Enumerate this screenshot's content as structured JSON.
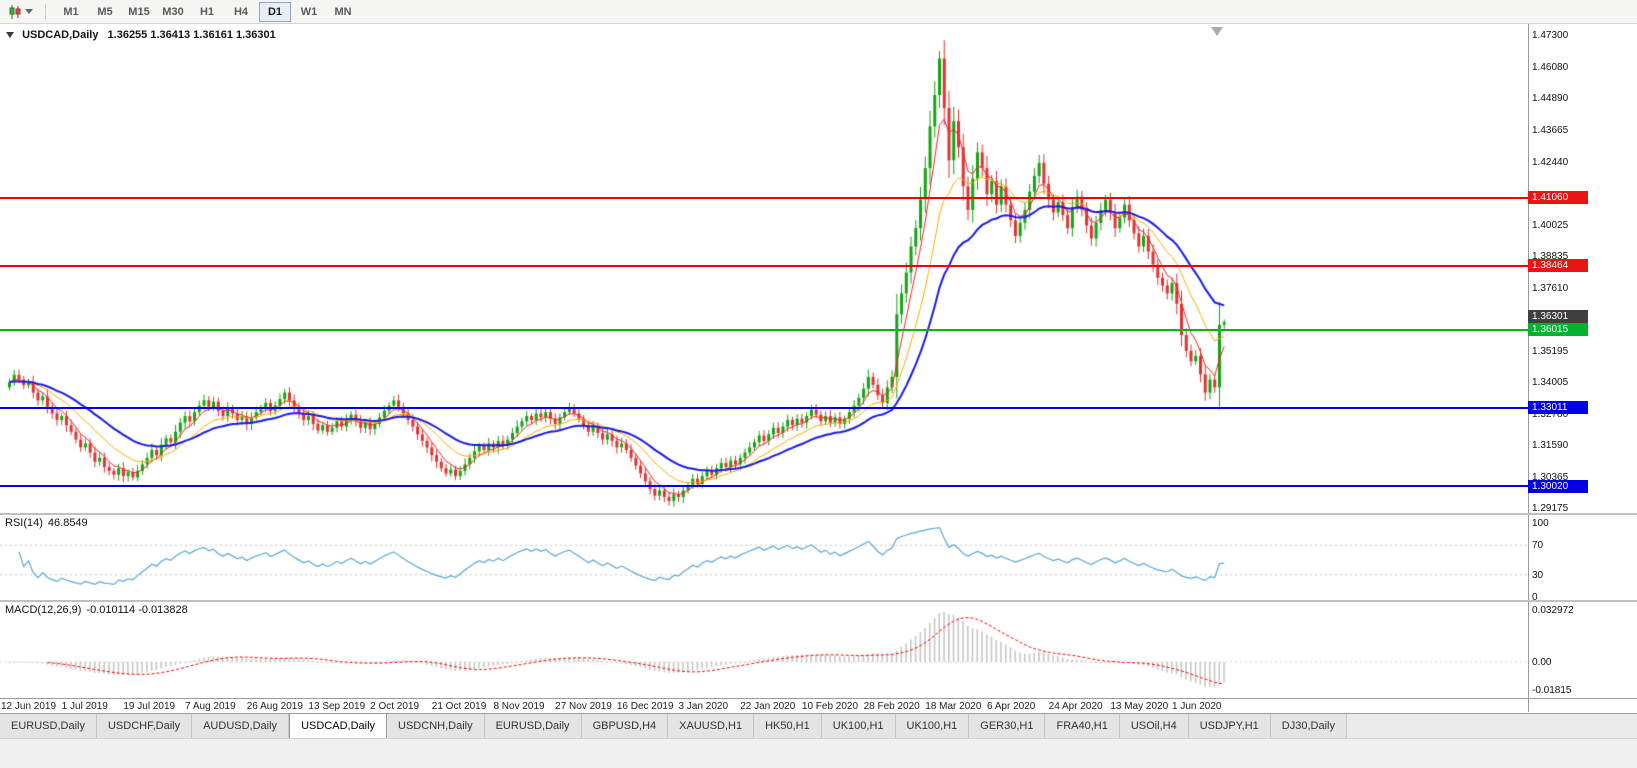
{
  "toolbar": {
    "timeframes": [
      "M1",
      "M5",
      "M15",
      "M30",
      "H1",
      "H4",
      "D1",
      "W1",
      "MN"
    ],
    "active_timeframe": "D1"
  },
  "header": {
    "symbol_period": "USDCAD,Daily",
    "ohlc": "1.36255 1.36413 1.36161 1.36301"
  },
  "price_scale": {
    "labels": [
      "1.47300",
      "1.46080",
      "1.44890",
      "1.43665",
      "1.42440",
      "1.40025",
      "1.38835",
      "1.37610",
      "1.35195",
      "1.34005",
      "1.32780",
      "1.31590",
      "1.30365",
      "1.29175"
    ]
  },
  "levels": [
    {
      "text": "1.41060",
      "value": 1.4106,
      "line_color": "#f00000",
      "tag_color": "#e81515"
    },
    {
      "text": "1.38464",
      "value": 1.38464,
      "line_color": "#f00000",
      "tag_color": "#e81515"
    },
    {
      "text": "1.36015",
      "value": 1.36015,
      "line_color": "#00bb00",
      "tag_color": "#00b22d"
    },
    {
      "text": "1.33011",
      "value": 1.33011,
      "line_color": "#0000f0",
      "tag_color": "#0000e0"
    },
    {
      "text": "1.30020",
      "value": 1.3002,
      "line_color": "#0000f0",
      "tag_color": "#0000e0"
    }
  ],
  "current_price": {
    "text": "1.36301",
    "value": 1.36301,
    "tag_color": "#3f3f3f"
  },
  "rsi": {
    "label": "RSI(14)",
    "value": "46.8549",
    "scale": [
      "100",
      "70",
      "30",
      "0"
    ],
    "scale_values": [
      100,
      70,
      30,
      0
    ]
  },
  "macd": {
    "label": "MACD(12,26,9)",
    "values": "-0.010114 -0.013828",
    "scale": [
      {
        "text": "0.032972",
        "value": 0.032972
      },
      {
        "text": "0.00",
        "value": 0
      },
      {
        "text": "-0.01815",
        "value": -0.01815
      }
    ]
  },
  "time_axis": [
    {
      "i": 0,
      "label": "12 Jun 2019"
    },
    {
      "i": 13,
      "label": "1 Jul 2019"
    },
    {
      "i": 26,
      "label": "19 Jul 2019"
    },
    {
      "i": 39,
      "label": "7 Aug 2019"
    },
    {
      "i": 52,
      "label": "26 Aug 2019"
    },
    {
      "i": 65,
      "label": "13 Sep 2019"
    },
    {
      "i": 78,
      "label": "2 Oct 2019"
    },
    {
      "i": 91,
      "label": "21 Oct 2019"
    },
    {
      "i": 104,
      "label": "8 Nov 2019"
    },
    {
      "i": 117,
      "label": "27 Nov 2019"
    },
    {
      "i": 130,
      "label": "16 Dec 2019"
    },
    {
      "i": 143,
      "label": "3 Jan 2020"
    },
    {
      "i": 156,
      "label": "22 Jan 2020"
    },
    {
      "i": 169,
      "label": "10 Feb 2020"
    },
    {
      "i": 182,
      "label": "28 Feb 2020"
    },
    {
      "i": 195,
      "label": "18 Mar 2020"
    },
    {
      "i": 208,
      "label": "6 Apr 2020"
    },
    {
      "i": 221,
      "label": "24 Apr 2020"
    },
    {
      "i": 234,
      "label": "13 May 2020"
    },
    {
      "i": 247,
      "label": "1 Jun 2020"
    }
  ],
  "tabs": {
    "active_index": 3,
    "items": [
      "EURUSD,Daily",
      "USDCHF,Daily",
      "AUDUSD,Daily",
      "USDCAD,Daily",
      "USDCNH,Daily",
      "EURUSD,Daily",
      "GBPUSD,H4",
      "XAUUSD,H1",
      "HK50,H1",
      "UK100,H1",
      "UK100,H1",
      "GER30,H1",
      "FRA40,H1",
      "USOil,H4",
      "USDJPY,H1",
      "DJ30,Daily"
    ]
  },
  "colors": {
    "bull": "#12a512",
    "bear": "#e03333",
    "ma_fast": "#ff2020",
    "ma_mid": "#ffaa00",
    "ma_slow": "#1a1ae6",
    "rsi_line": "#5aa7d4",
    "rsi_levels": "#c8c8c8",
    "macd_hist": "#c6c6c6",
    "macd_signal": "#ff0000"
  },
  "chart_data": {
    "type": "candlestick",
    "symbol": "USDCAD",
    "timeframe": "Daily",
    "last_bar": {
      "open": 1.36255,
      "high": 1.36413,
      "low": 1.36161,
      "close": 1.36301
    },
    "ylim": [
      1.29175,
      1.473
    ],
    "horizontal_levels": [
      1.4106,
      1.38464,
      1.36015,
      1.33011,
      1.3002
    ],
    "moving_averages": [
      {
        "period": 5,
        "color": "#ff2020",
        "width": 1
      },
      {
        "period": 13,
        "color": "#ffaa00",
        "width": 1
      },
      {
        "period": 26,
        "color": "#1a1ae6",
        "width": 2
      }
    ],
    "indicators": [
      {
        "name": "RSI",
        "period": 14,
        "current": 46.8549,
        "levels": [
          30,
          70
        ]
      },
      {
        "name": "MACD",
        "fast": 12,
        "slow": 26,
        "signal": 9,
        "current_main": -0.010114,
        "current_signal": -0.013828,
        "axis_max": 0.032972,
        "axis_min": -0.01815
      }
    ],
    "closes": [
      1.34,
      1.3428,
      1.341,
      1.3388,
      1.3398,
      1.336,
      1.333,
      1.3345,
      1.3305,
      1.328,
      1.3255,
      1.327,
      1.3235,
      1.321,
      1.318,
      1.315,
      1.3165,
      1.313,
      1.3095,
      1.311,
      1.3075,
      1.306,
      1.3045,
      1.307,
      1.304,
      1.3055,
      1.3035,
      1.306,
      1.3085,
      1.311,
      1.314,
      1.312,
      1.316,
      1.3185,
      1.317,
      1.321,
      1.3245,
      1.327,
      1.325,
      1.3285,
      1.331,
      1.333,
      1.3305,
      1.3325,
      1.329,
      1.327,
      1.33,
      1.328,
      1.3255,
      1.327,
      1.324,
      1.3265,
      1.3285,
      1.33,
      1.332,
      1.329,
      1.331,
      1.3335,
      1.336,
      1.333,
      1.3305,
      1.328,
      1.3255,
      1.327,
      1.324,
      1.3215,
      1.3235,
      1.321,
      1.3225,
      1.325,
      1.323,
      1.3255,
      1.3275,
      1.325,
      1.3225,
      1.3245,
      1.322,
      1.324,
      1.3265,
      1.329,
      1.331,
      1.333,
      1.3305,
      1.328,
      1.3255,
      1.323,
      1.32,
      1.3175,
      1.315,
      1.312,
      1.3095,
      1.307,
      1.305,
      1.3065,
      1.304,
      1.306,
      1.3085,
      1.311,
      1.3135,
      1.3155,
      1.314,
      1.3165,
      1.315,
      1.3175,
      1.3155,
      1.318,
      1.3205,
      1.323,
      1.325,
      1.327,
      1.3255,
      1.328,
      1.3265,
      1.3285,
      1.326,
      1.324,
      1.3265,
      1.3285,
      1.33,
      1.328,
      1.326,
      1.3235,
      1.321,
      1.323,
      1.3205,
      1.318,
      1.32,
      1.3175,
      1.315,
      1.3165,
      1.314,
      1.311,
      1.308,
      1.305,
      1.302,
      1.299,
      1.2965,
      1.2985,
      1.296,
      1.2945,
      1.297,
      1.296,
      1.2985,
      1.3005,
      1.303,
      1.301,
      1.304,
      1.306,
      1.3045,
      1.307,
      1.309,
      1.3075,
      1.31,
      1.3085,
      1.311,
      1.313,
      1.315,
      1.317,
      1.3195,
      1.3175,
      1.32,
      1.3225,
      1.3205,
      1.323,
      1.3255,
      1.3235,
      1.326,
      1.3245,
      1.327,
      1.3295,
      1.3275,
      1.325,
      1.327,
      1.3245,
      1.3265,
      1.324,
      1.326,
      1.3285,
      1.331,
      1.334,
      1.3375,
      1.342,
      1.339,
      1.335,
      1.332,
      1.338,
      1.342,
      1.366,
      1.374,
      1.382,
      1.392,
      1.399,
      1.41,
      1.422,
      1.438,
      1.45,
      1.464,
      1.445,
      1.425,
      1.44,
      1.43,
      1.415,
      1.406,
      1.418,
      1.428,
      1.422,
      1.412,
      1.417,
      1.408,
      1.415,
      1.408,
      1.402,
      1.396,
      1.401,
      1.406,
      1.413,
      1.419,
      1.424,
      1.416,
      1.41,
      1.405,
      1.409,
      1.404,
      1.399,
      1.407,
      1.411,
      1.406,
      1.4,
      1.395,
      1.401,
      1.406,
      1.41,
      1.405,
      1.399,
      1.403,
      1.408,
      1.402,
      1.397,
      1.392,
      1.396,
      1.39,
      1.385,
      1.38,
      1.377,
      1.374,
      1.378,
      1.37,
      1.358,
      1.352,
      1.348,
      1.35,
      1.343,
      1.336,
      1.341,
      1.338,
      1.362,
      1.363
    ],
    "x_label_indices_note": "labels in time_axis map candle index i to date"
  }
}
